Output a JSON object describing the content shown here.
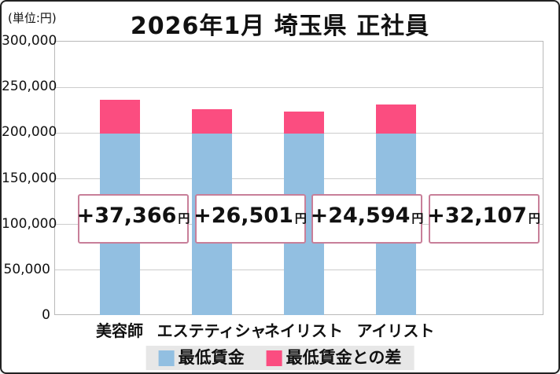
{
  "header": {
    "unit_label": "(単位:円)",
    "title": "2026年1月 埼玉県 正社員"
  },
  "chart_data": {
    "type": "bar",
    "stacked": true,
    "title": "2026年1月 埼玉県 正社員",
    "unit": "円",
    "categories": [
      "美容師",
      "エステティシャン",
      "ネイリスト",
      "アイリスト"
    ],
    "series": [
      {
        "name": "最低賃金",
        "color": "#92bfe1",
        "estimated": true,
        "values": [
          198300,
          198300,
          198300,
          198300
        ]
      },
      {
        "name": "最低賃金との差",
        "color": "#fb4d80",
        "values": [
          37366,
          26501,
          24594,
          32107
        ]
      }
    ],
    "totals_estimated": [
      235666,
      224801,
      222894,
      230407
    ],
    "bar_labels": [
      "+37,366円",
      "+26,501円",
      "+24,594円",
      "+32,107円"
    ],
    "ylim": [
      0,
      300000
    ],
    "ytick_step": 50000,
    "ytick_labels": [
      "0",
      "50,000",
      "100,000",
      "150,000",
      "200,000",
      "250,000",
      "300,000"
    ],
    "grid": true,
    "legend_position": "bottom"
  },
  "callouts": [
    {
      "amount": "+37,366",
      "unit": "円"
    },
    {
      "amount": "+26,501",
      "unit": "円"
    },
    {
      "amount": "+24,594",
      "unit": "円"
    },
    {
      "amount": "+32,107",
      "unit": "円"
    }
  ],
  "legend": {
    "items": [
      {
        "label": "最低賃金",
        "color": "#92bfe1"
      },
      {
        "label": "最低賃金との差",
        "color": "#fb4d80"
      }
    ]
  },
  "colors": {
    "min_wage_bar": "#92bfe1",
    "diff_bar": "#fb4d80",
    "callout_border": "#c87f99",
    "gridline": "#cccccc",
    "legend_background": "#e7e7e7",
    "text": "#111111"
  }
}
